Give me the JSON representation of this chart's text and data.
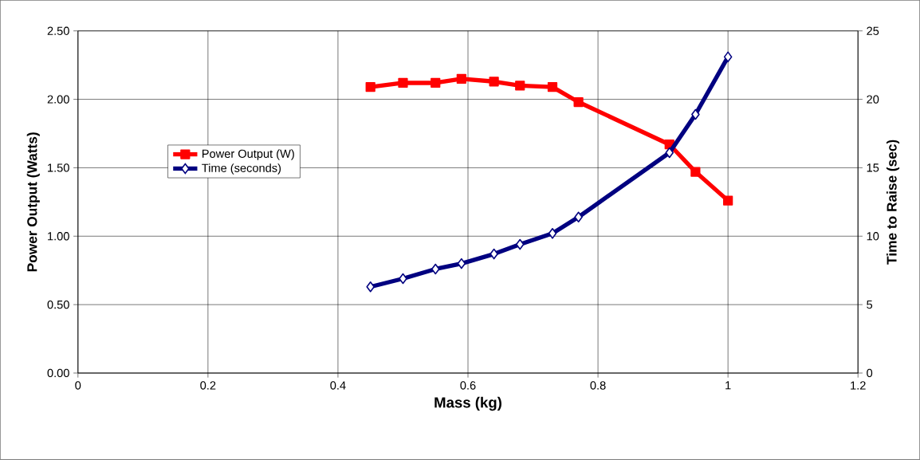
{
  "chart_data": {
    "type": "line",
    "xlabel": "Mass (kg)",
    "ylabel": "Power Output (Watts)",
    "y2label": "Time to Raise (sec)",
    "x": [
      0.45,
      0.5,
      0.55,
      0.59,
      0.64,
      0.68,
      0.73,
      0.77,
      0.91,
      0.95,
      1.0
    ],
    "series": [
      {
        "name": "Power Output (W)",
        "color": "#ff0000",
        "marker": "square",
        "values": [
          2.09,
          2.12,
          2.12,
          2.15,
          2.13,
          2.1,
          2.09,
          1.98,
          1.67,
          1.47,
          1.26
        ]
      },
      {
        "name": "Time (seconds)",
        "color": "#000080",
        "marker": "diamond",
        "axis": "y2",
        "values": [
          6.3,
          6.9,
          7.6,
          8.0,
          8.7,
          9.4,
          10.2,
          11.4,
          16.1,
          18.9,
          23.1
        ]
      }
    ],
    "xlim": [
      0,
      1.2
    ],
    "xticks": [
      0,
      0.2,
      0.4,
      0.6,
      0.8,
      1,
      1.2
    ],
    "ylim": [
      0,
      2.5
    ],
    "yticks": [
      {
        "value": 0,
        "label": "0.00"
      },
      {
        "value": 0.5,
        "label": "0.50"
      },
      {
        "value": 1,
        "label": "1.00"
      },
      {
        "value": 1.5,
        "label": "1.50"
      },
      {
        "value": 2,
        "label": "2.00"
      },
      {
        "value": 2.5,
        "label": "2.50"
      }
    ],
    "y2lim": [
      0,
      25
    ],
    "y2ticks": [
      0,
      5,
      10,
      15,
      20,
      25
    ],
    "grid": true,
    "legend": "left",
    "line_style": "solid"
  }
}
